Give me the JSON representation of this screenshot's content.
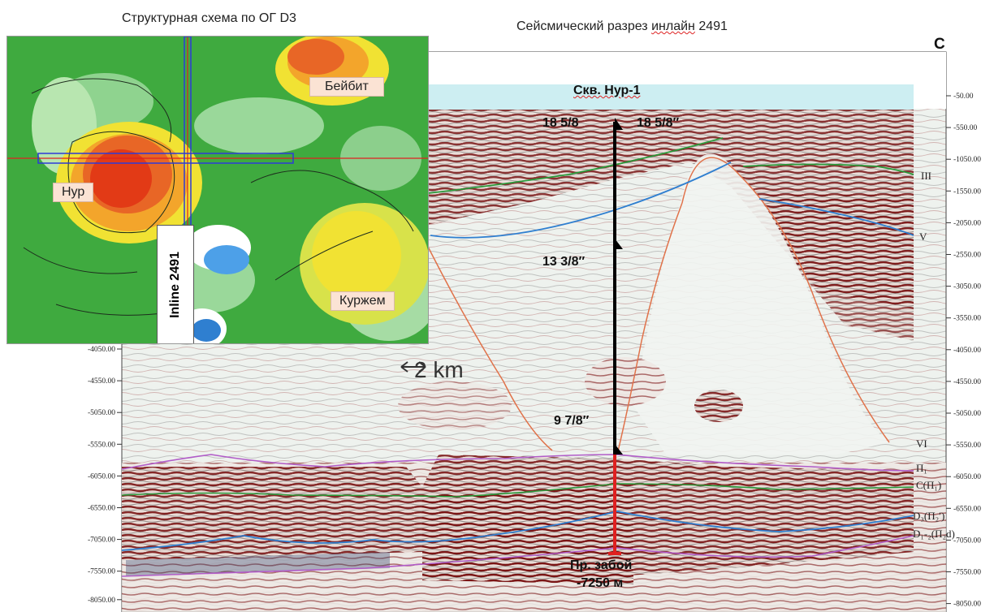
{
  "titles": {
    "map": "Структурная схема по ОГ D3",
    "section_prefix": "Сейсмический разрез",
    "section_underlined": "инлайн",
    "section_suffix": "2491"
  },
  "compass": "С",
  "map": {
    "labels": {
      "nur": "Нур",
      "beibit": "Бейбит",
      "kurzhem": "Куржем"
    },
    "inline_label": "Inline 2491"
  },
  "well": {
    "name": "Скв. Нур-1",
    "casing_1_left": "18 5/8",
    "casing_1_right": "18 5/8″",
    "casing_2": "13 3/8″",
    "casing_3": "9 7/8″",
    "bottom_line1": "Пр. забой",
    "bottom_line2": "-7250 м"
  },
  "scale_bar": "2 km",
  "depth_ticks_right": [
    "-50.00",
    "-550.00",
    "-1050.00",
    "-1550.00",
    "-2050.00",
    "-2550.00",
    "-3050.00",
    "-3550.00",
    "-4050.00",
    "-4550.00",
    "-5050.00",
    "-5550.00",
    "-6050.00",
    "-6550.00",
    "-7050.00",
    "-7550.00",
    "-8050.00"
  ],
  "depth_ticks_left": [
    "-4050.00",
    "-4550.00",
    "-5050.00",
    "-5550.00",
    "-6050.00",
    "-6550.00",
    "-7050.00",
    "-7550.00",
    "-8050.00"
  ],
  "horizons": [
    "III",
    "V",
    "VI",
    "П₁",
    "С(П₁)",
    "D₃(П₂′)",
    "D₁-₂(П₂d)"
  ],
  "colors": {
    "horizon_green": "#2a9a3a",
    "horizon_blue": "#2f7fd0",
    "horizon_purple": "#b15cc8",
    "fault_orange": "#e0724a",
    "well_red": "#e02020",
    "map_green": "#3faa3f",
    "map_red": "#e23a16"
  }
}
